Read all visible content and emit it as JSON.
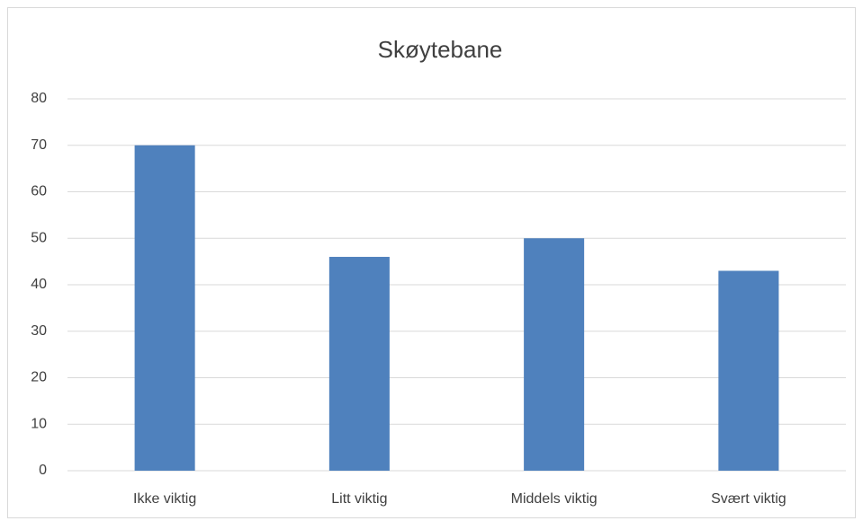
{
  "chart_data": {
    "type": "bar",
    "title": "Skøytebane",
    "categories": [
      "Ikke viktig",
      "Litt viktig",
      "Middels viktig",
      "Svært viktig"
    ],
    "values": [
      70,
      46,
      50,
      43
    ],
    "color": "#4f81bd",
    "ylim": [
      0,
      80
    ],
    "yticks": [
      0,
      10,
      20,
      30,
      40,
      50,
      60,
      70,
      80
    ],
    "grid": true
  }
}
